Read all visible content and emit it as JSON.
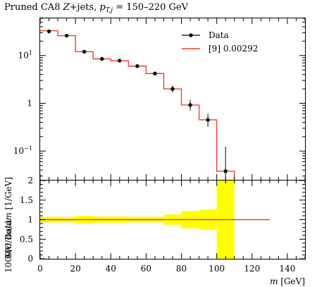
{
  "chart_data": [
    {
      "type": "line",
      "panel": "main",
      "title": "Pruned CA8 Z+jets, p_{T,j} = 150–220 GeV",
      "title_parts": {
        "a": "Pruned CA8 ",
        "b": "Z",
        "c": "+jets, ",
        "d": "p",
        "e": "T,j",
        "f": " = 150–220 GeV"
      },
      "ylabel": "1000/σ dσ/dm [1/GeV]",
      "ylabel_parts": {
        "a": "1000/",
        "b": "σ",
        "c": " d",
        "d": "σ",
        "e": "/d",
        "f": "m",
        "g": " [1/GeV]"
      },
      "y_scale": "log",
      "ylim": [
        0.025,
        60
      ],
      "xlim": [
        0,
        150
      ],
      "y_ticks": [
        {
          "value": 10,
          "label_base": "10",
          "label_exp": "1"
        },
        {
          "value": 1,
          "label_base": "1",
          "label_exp": ""
        },
        {
          "value": 0.1,
          "label_base": "10",
          "label_exp": "−1"
        }
      ],
      "legend": {
        "position": "top-right",
        "entries": [
          "Data",
          "[9] 0.00292"
        ]
      },
      "series": [
        {
          "name": "Data",
          "style": "points",
          "x": [
            5,
            15,
            25,
            35,
            45,
            55,
            65,
            75,
            85,
            95,
            105
          ],
          "y": [
            32,
            26,
            12,
            8.5,
            7.8,
            6.0,
            4.2,
            2.0,
            0.92,
            0.45,
            0.038
          ],
          "yerr_low": [
            0,
            0,
            0,
            0,
            0,
            0,
            0,
            0.3,
            0.22,
            0.13,
            0.015
          ],
          "yerr_high": [
            0,
            0,
            0,
            0,
            0,
            0,
            0,
            0.35,
            0.25,
            0.16,
            0.085
          ]
        },
        {
          "name": "[9] 0.00292",
          "style": "step",
          "color": "#e8412e",
          "bin_edges": [
            0,
            10,
            20,
            30,
            40,
            50,
            60,
            70,
            80,
            90,
            100,
            110
          ],
          "values": [
            33,
            26,
            12,
            8.5,
            7.8,
            6.0,
            4.2,
            2.0,
            0.92,
            0.45,
            0.038
          ]
        }
      ]
    },
    {
      "type": "area",
      "panel": "ratio",
      "ylabel": "MC/Data",
      "xlabel": "m [GeV]",
      "xlabel_parts": {
        "a": "m",
        "b": " [GeV]"
      },
      "xlim": [
        0,
        150
      ],
      "ylim": [
        0,
        2
      ],
      "y_ticks": [
        "0",
        "0.5",
        "1",
        "1.5",
        "2"
      ],
      "x_ticks": [
        "0",
        "20",
        "40",
        "60",
        "80",
        "100",
        "120",
        "140"
      ],
      "band_color": "#ffff00",
      "band": {
        "bin_edges": [
          0,
          10,
          20,
          30,
          40,
          50,
          60,
          70,
          80,
          90,
          100,
          110
        ],
        "low": [
          0.93,
          0.93,
          0.9,
          0.92,
          0.92,
          0.93,
          0.93,
          0.87,
          0.78,
          0.74,
          0.0
        ],
        "high": [
          1.07,
          1.07,
          1.1,
          1.08,
          1.08,
          1.07,
          1.07,
          1.13,
          1.22,
          1.26,
          2.0
        ]
      },
      "ratio_line": {
        "color": "#e8412e",
        "x": [
          0,
          130
        ],
        "y": [
          1,
          1
        ]
      }
    }
  ]
}
